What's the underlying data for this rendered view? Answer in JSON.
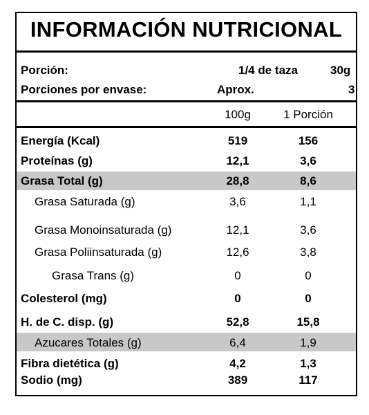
{
  "title": "INFORMACIÓN NUTRICIONAL",
  "serving": {
    "portion_label": "Porción:",
    "portion_value": "1/4 de taza",
    "portion_grams": "30g",
    "per_package_label": "Porciones por envase:",
    "per_package_approx": "Aprox.",
    "per_package_value": "3"
  },
  "headers": {
    "col1": "100g",
    "col2": "1 Porción"
  },
  "rows": [
    {
      "label": "Energía (Kcal)",
      "v100": "519",
      "vportion": "156"
    },
    {
      "label": "Proteínas (g)",
      "v100": "12,1",
      "vportion": "3,6"
    },
    {
      "label": "Grasa Total (g)",
      "v100": "28,8",
      "vportion": "8,6"
    },
    {
      "label": "Grasa Saturada (g)",
      "v100": "3,6",
      "vportion": "1,1"
    },
    {
      "label": "Grasa Monoinsaturada (g)",
      "v100": "12,1",
      "vportion": "3,6"
    },
    {
      "label": "Grasa Poliinsaturada (g)",
      "v100": "12,6",
      "vportion": "3,8"
    },
    {
      "label": "Grasa Trans (g)",
      "v100": "0",
      "vportion": "0"
    },
    {
      "label": "Colesterol (mg)",
      "v100": "0",
      "vportion": "0"
    },
    {
      "label": "H. de C. disp. (g)",
      "v100": "52,8",
      "vportion": "15,8"
    },
    {
      "label": "Azucares Totales (g)",
      "v100": "6,4",
      "vportion": "1,9"
    },
    {
      "label": "Fibra dietética (g)",
      "v100": "4,2",
      "vportion": "1,3"
    },
    {
      "label": "Sodio (mg)",
      "v100": "389",
      "vportion": "117"
    }
  ],
  "colors": {
    "shade": "#c8c8c8",
    "border": "#000000"
  }
}
